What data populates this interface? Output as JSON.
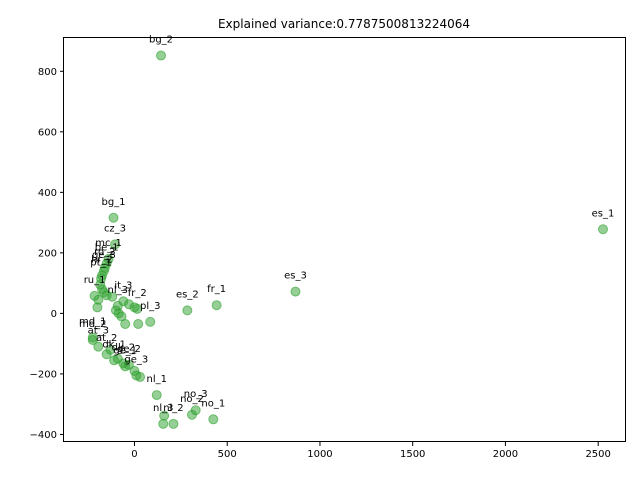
{
  "chart_data": {
    "type": "scatter",
    "title": "Explained variance:0.7787500813224064",
    "xlabel": "",
    "ylabel": "",
    "xlim": [
      -380,
      2650
    ],
    "ylim": [
      -425,
      910
    ],
    "xticks": [
      0,
      500,
      1000,
      1500,
      2000,
      2500
    ],
    "yticks": [
      -400,
      -200,
      0,
      200,
      400,
      600,
      800
    ],
    "grid": false,
    "point_color": "#2ca02c",
    "points": [
      {
        "label": "bg_2",
        "x": 143,
        "y": 852
      },
      {
        "label": "bg_1",
        "x": -113,
        "y": 316
      },
      {
        "label": "es_1",
        "x": 2526,
        "y": 278
      },
      {
        "label": "cz_3",
        "x": -105,
        "y": 228
      },
      {
        "label": "mc_1",
        "x": -140,
        "y": 180
      },
      {
        "label": "be_1",
        "x": -150,
        "y": 165
      },
      {
        "label": "ro_2",
        "x": -160,
        "y": 150
      },
      {
        "label": "ge_3",
        "x": -165,
        "y": 140
      },
      {
        "label": "hr_2",
        "x": -175,
        "y": 125
      },
      {
        "label": "pt_1",
        "x": -180,
        "y": 115
      },
      {
        "label": "ru_1",
        "x": -215,
        "y": 58
      },
      {
        "label": "es_3",
        "x": 868,
        "y": 72
      },
      {
        "label": "fr_1",
        "x": 443,
        "y": 27
      },
      {
        "label": "es_2",
        "x": 285,
        "y": 10
      },
      {
        "label": "it_3",
        "x": -60,
        "y": 40
      },
      {
        "label": "nl_3",
        "x": -90,
        "y": 25
      },
      {
        "label": "fr_2",
        "x": 15,
        "y": 15
      },
      {
        "label": "pl_3",
        "x": 85,
        "y": -28
      },
      {
        "label": "md_1",
        "x": -225,
        "y": -80
      },
      {
        "label": "md_2",
        "x": -225,
        "y": -88
      },
      {
        "label": "at_3",
        "x": -195,
        "y": -110
      },
      {
        "label": "at_2",
        "x": -150,
        "y": -135
      },
      {
        "label": "dk_1",
        "x": -110,
        "y": -155
      },
      {
        "label": "dk_2",
        "x": -60,
        "y": -165
      },
      {
        "label": "ge_2",
        "x": -30,
        "y": -170
      },
      {
        "label": "ge_1",
        "x": -50,
        "y": -175
      },
      {
        "label": "ge_3",
        "x": 10,
        "y": -205
      },
      {
        "label": "nl_1",
        "x": 120,
        "y": -270
      },
      {
        "label": "no_3",
        "x": 330,
        "y": -320
      },
      {
        "label": "no_2",
        "x": 310,
        "y": -335
      },
      {
        "label": "no_1",
        "x": 425,
        "y": -350
      },
      {
        "label": "nl_3",
        "x": 155,
        "y": -365
      },
      {
        "label": "nl_2",
        "x": 210,
        "y": -365
      }
    ],
    "unlabeled_points": [
      {
        "x": 160,
        "y": -338
      },
      {
        "x": -200,
        "y": 20
      },
      {
        "x": -195,
        "y": 45
      },
      {
        "x": -185,
        "y": 95
      },
      {
        "x": -175,
        "y": 80
      },
      {
        "x": -165,
        "y": 70
      },
      {
        "x": -150,
        "y": 60
      },
      {
        "x": -120,
        "y": 55
      },
      {
        "x": -100,
        "y": 10
      },
      {
        "x": -85,
        "y": 0
      },
      {
        "x": -70,
        "y": -10
      },
      {
        "x": -50,
        "y": -35
      },
      {
        "x": -30,
        "y": 30
      },
      {
        "x": 0,
        "y": 20
      },
      {
        "x": 20,
        "y": -35
      },
      {
        "x": -130,
        "y": -120
      },
      {
        "x": -90,
        "y": -150
      },
      {
        "x": 0,
        "y": -190
      },
      {
        "x": 30,
        "y": -210
      }
    ]
  }
}
